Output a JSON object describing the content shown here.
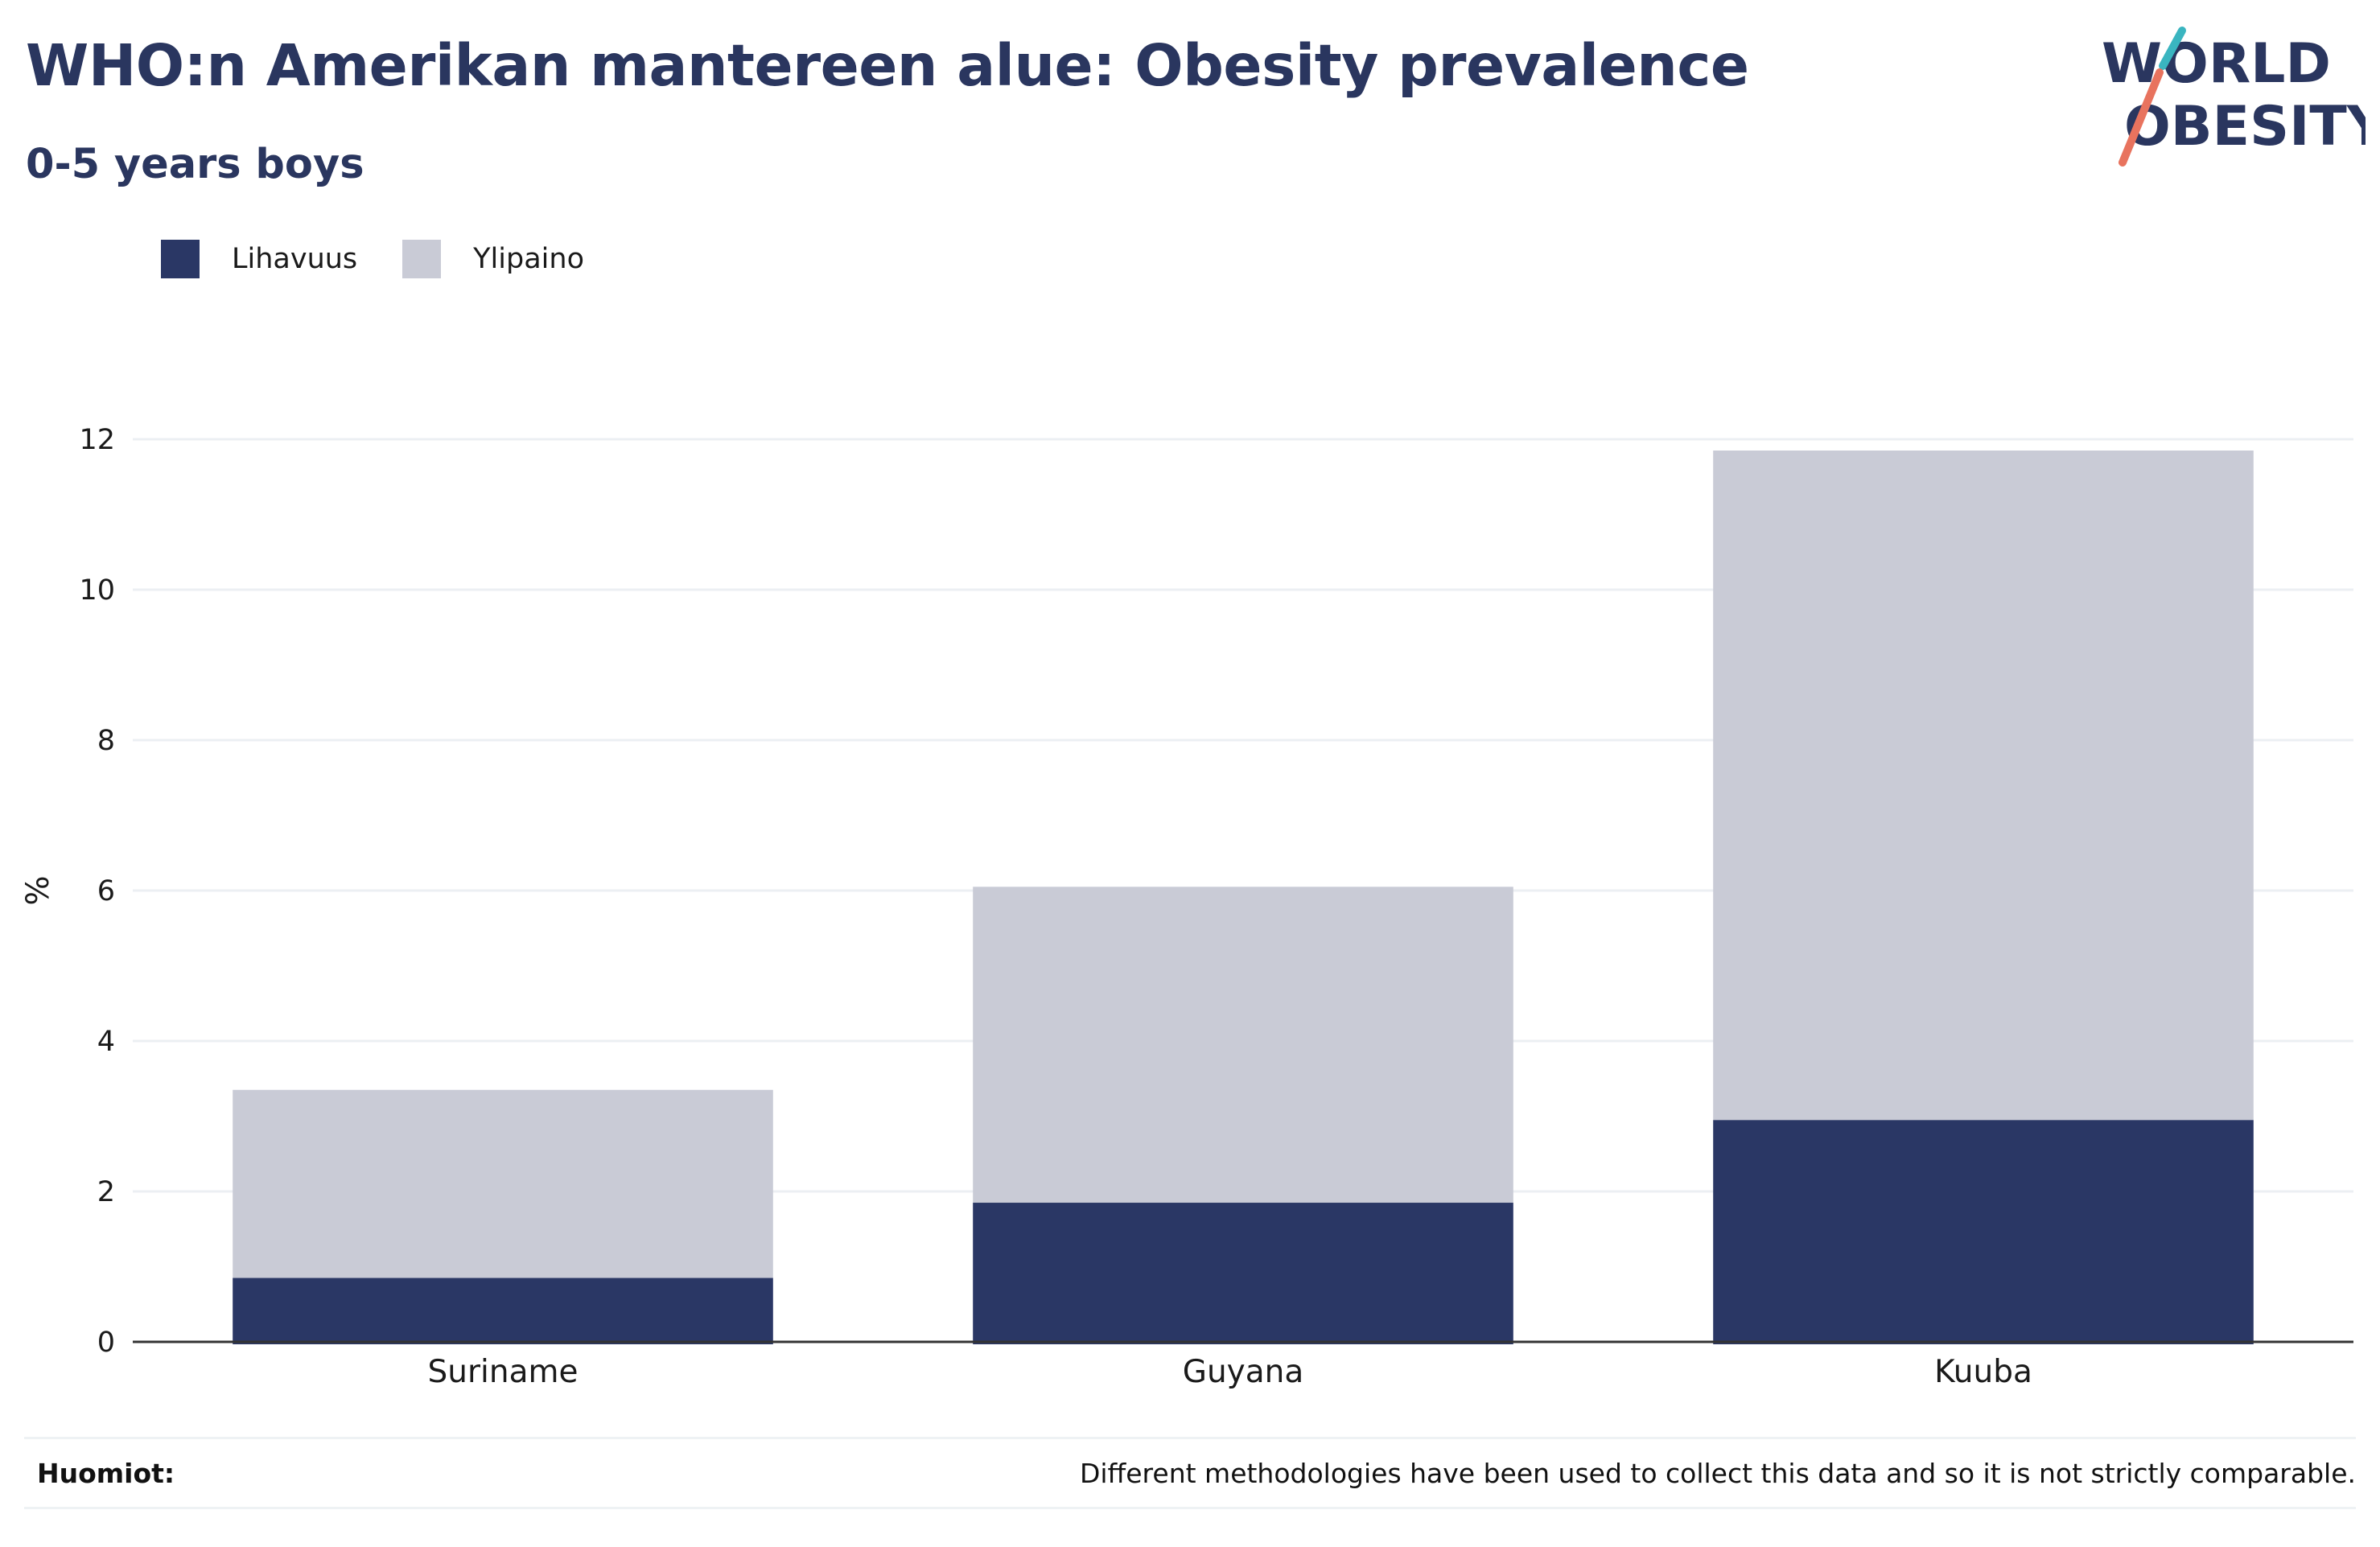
{
  "title": "WHO:n Amerikan mantereen alue: Obesity prevalence",
  "subtitle": "0-5 years boys",
  "logo": {
    "line1": "WORLD",
    "line2": "OBESITY"
  },
  "footer": {
    "label": "Huomiot:",
    "note": "Different methodologies have been used to collect this data and so it is not strictly comparable."
  },
  "colors": {
    "obesity": "#2a3765",
    "overweight": "#c9cbd6",
    "text": "#2a365f",
    "grid": "#eceff3",
    "axis": "#333333",
    "logo_teal": "#3ab5c0",
    "logo_coral": "#e8735e"
  },
  "chart_data": {
    "type": "bar",
    "stacked": true,
    "categories": [
      "Suriname",
      "Guyana",
      "Kuuba"
    ],
    "series": [
      {
        "name": "Lihavuus",
        "values": [
          0.85,
          1.85,
          2.95
        ]
      },
      {
        "name": "Ylipaino",
        "values": [
          2.5,
          4.2,
          8.9
        ]
      }
    ],
    "ylabel": "%",
    "xlabel": "",
    "ylim": [
      0,
      12
    ],
    "yticks": [
      0,
      2,
      4,
      6,
      8,
      10,
      12
    ],
    "grid": true,
    "legend_position": "top-left"
  }
}
